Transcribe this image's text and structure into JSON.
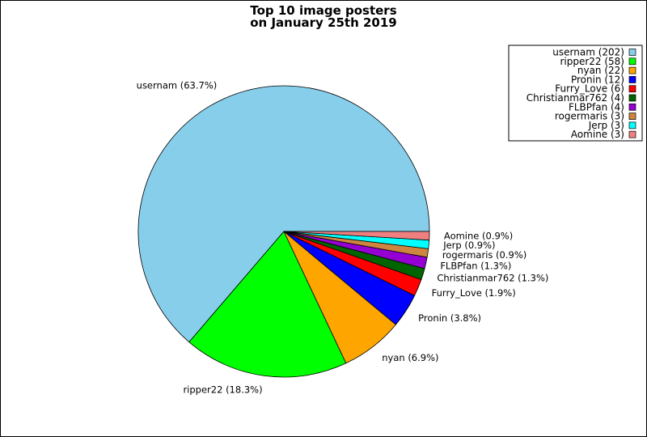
{
  "chart_data": {
    "type": "pie",
    "title_lines": [
      "Top 10 image posters",
      "on January 25th 2019"
    ],
    "slices": [
      {
        "name": "usernam",
        "value": 202,
        "label": "usernam (63.7%)",
        "legend": "usernam (202)",
        "color": "#87ceeb"
      },
      {
        "name": "ripper22",
        "value": 58,
        "label": "ripper22 (18.3%)",
        "legend": "ripper22 (58)",
        "color": "#00ff00"
      },
      {
        "name": "nyan",
        "value": 22,
        "label": "nyan (6.9%)",
        "legend": "nyan (22)",
        "color": "#ffa500"
      },
      {
        "name": "Pronin",
        "value": 12,
        "label": "Pronin (3.8%)",
        "legend": "Pronin (12)",
        "color": "#0000ff"
      },
      {
        "name": "Furry_Love",
        "value": 6,
        "label": "Furry_Love (1.9%)",
        "legend": "Furry_Love (6)",
        "color": "#ff0000"
      },
      {
        "name": "Christianmar762",
        "value": 4,
        "label": "Christianmar762 (1.3%)",
        "legend": "Christianmar762 (4)",
        "color": "#006400"
      },
      {
        "name": "FLBPfan",
        "value": 4,
        "label": "FLBPfan (1.3%)",
        "legend": "FLBPfan (4)",
        "color": "#9400d3"
      },
      {
        "name": "rogermaris",
        "value": 3,
        "label": "rogermaris (0.9%)",
        "legend": "rogermaris (3)",
        "color": "#cd853f"
      },
      {
        "name": "Jerp",
        "value": 3,
        "label": "Jerp (0.9%)",
        "legend": "Jerp (3)",
        "color": "#00ffff"
      },
      {
        "name": "Aomine",
        "value": 3,
        "label": "Aomine (0.9%)",
        "legend": "Aomine (3)",
        "color": "#f08080"
      }
    ],
    "legend_position": "top-right"
  }
}
